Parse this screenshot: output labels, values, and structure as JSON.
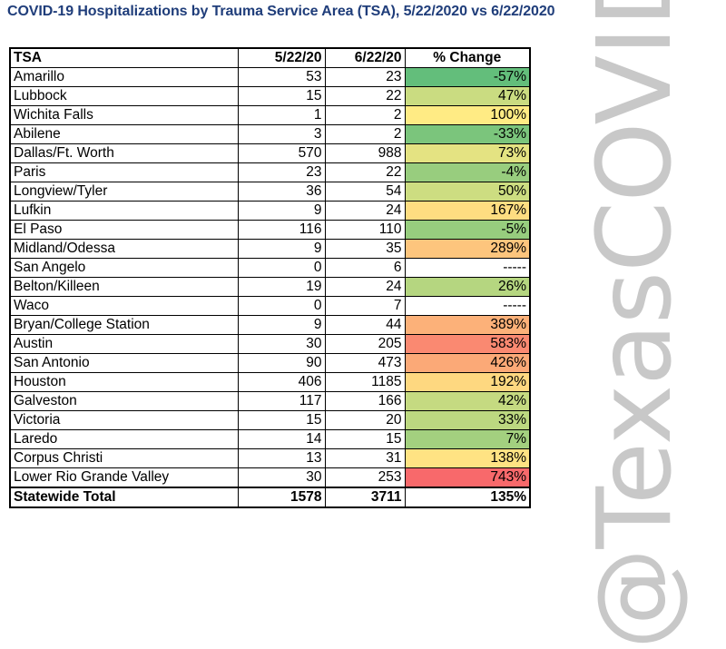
{
  "title": "COVID-19 Hospitalizations by Trauma Service Area (TSA), 5/22/2020 vs 6/22/2020",
  "watermark": "@TexasCOVID",
  "colors": {
    "title": "#1f3d7a",
    "green_strong": "#63be7b",
    "yellow": "#ffeb84",
    "red_strong": "#f8696b"
  },
  "chart_data": {
    "type": "table",
    "columns": [
      "TSA",
      "5/22/20",
      "6/22/20",
      "% Change"
    ],
    "rows": [
      {
        "tsa": "Amarillo",
        "may": 53,
        "jun": 23,
        "pct_label": "-57%",
        "pct": -57
      },
      {
        "tsa": "Lubbock",
        "may": 15,
        "jun": 22,
        "pct_label": "47%",
        "pct": 47
      },
      {
        "tsa": "Wichita Falls",
        "may": 1,
        "jun": 2,
        "pct_label": "100%",
        "pct": 100
      },
      {
        "tsa": "Abilene",
        "may": 3,
        "jun": 2,
        "pct_label": "-33%",
        "pct": -33
      },
      {
        "tsa": "Dallas/Ft. Worth",
        "may": 570,
        "jun": 988,
        "pct_label": "73%",
        "pct": 73
      },
      {
        "tsa": "Paris",
        "may": 23,
        "jun": 22,
        "pct_label": "-4%",
        "pct": -4
      },
      {
        "tsa": "Longview/Tyler",
        "may": 36,
        "jun": 54,
        "pct_label": "50%",
        "pct": 50
      },
      {
        "tsa": "Lufkin",
        "may": 9,
        "jun": 24,
        "pct_label": "167%",
        "pct": 167
      },
      {
        "tsa": "El Paso",
        "may": 116,
        "jun": 110,
        "pct_label": "-5%",
        "pct": -5
      },
      {
        "tsa": "Midland/Odessa",
        "may": 9,
        "jun": 35,
        "pct_label": "289%",
        "pct": 289
      },
      {
        "tsa": "San Angelo",
        "may": 0,
        "jun": 6,
        "pct_label": "-----",
        "pct": null
      },
      {
        "tsa": "Belton/Killeen",
        "may": 19,
        "jun": 24,
        "pct_label": "26%",
        "pct": 26
      },
      {
        "tsa": "Waco",
        "may": 0,
        "jun": 7,
        "pct_label": "-----",
        "pct": null
      },
      {
        "tsa": "Bryan/College Station",
        "may": 9,
        "jun": 44,
        "pct_label": "389%",
        "pct": 389
      },
      {
        "tsa": "Austin",
        "may": 30,
        "jun": 205,
        "pct_label": "583%",
        "pct": 583
      },
      {
        "tsa": "San Antonio",
        "may": 90,
        "jun": 473,
        "pct_label": "426%",
        "pct": 426
      },
      {
        "tsa": "Houston",
        "may": 406,
        "jun": 1185,
        "pct_label": "192%",
        "pct": 192
      },
      {
        "tsa": "Galveston",
        "may": 117,
        "jun": 166,
        "pct_label": "42%",
        "pct": 42
      },
      {
        "tsa": "Victoria",
        "may": 15,
        "jun": 20,
        "pct_label": "33%",
        "pct": 33
      },
      {
        "tsa": "Laredo",
        "may": 14,
        "jun": 15,
        "pct_label": "7%",
        "pct": 7
      },
      {
        "tsa": "Corpus Christi",
        "may": 13,
        "jun": 31,
        "pct_label": "138%",
        "pct": 138
      },
      {
        "tsa": "Lower Rio Grande Valley",
        "may": 30,
        "jun": 253,
        "pct_label": "743%",
        "pct": 743
      }
    ],
    "total": {
      "tsa": "Statewide Total",
      "may": 1578,
      "jun": 3711,
      "pct_label": "135%",
      "pct": 135
    }
  }
}
